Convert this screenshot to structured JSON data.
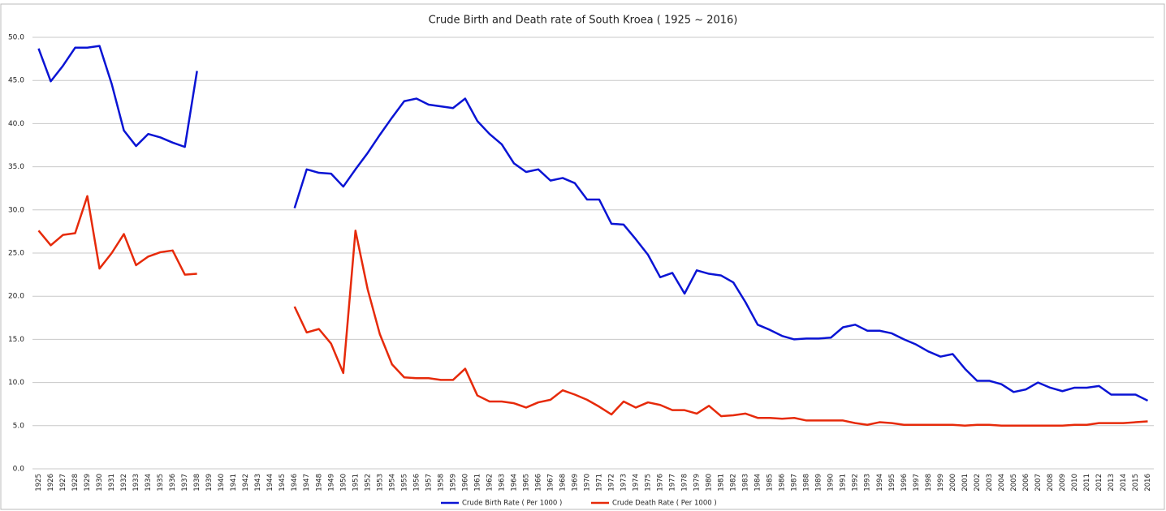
{
  "chart_data": {
    "type": "line",
    "title": "Crude Birth and Death rate of South Kroea ( 1925 ~ 2016)",
    "categories": [
      "1925",
      "1926",
      "1927",
      "1928",
      "1929",
      "1930",
      "1931",
      "1932",
      "1933",
      "1934",
      "1935",
      "1936",
      "1937",
      "1938",
      "1939",
      "1940",
      "1941",
      "1942",
      "1943",
      "1944",
      "1945",
      "1946",
      "1947",
      "1948",
      "1949",
      "1950",
      "1951",
      "1952",
      "1953",
      "1954",
      "1955",
      "1956",
      "1957",
      "1958",
      "1959",
      "1960",
      "1961",
      "1962",
      "1963",
      "1964",
      "1965",
      "1966",
      "1967",
      "1968",
      "1969",
      "1970",
      "1971",
      "1972",
      "1973",
      "1974",
      "1975",
      "1976",
      "1977",
      "1978",
      "1979",
      "1980",
      "1981",
      "1982",
      "1983",
      "1984",
      "1985",
      "1986",
      "1987",
      "1988",
      "1989",
      "1990",
      "1991",
      "1992",
      "1993",
      "1994",
      "1995",
      "1996",
      "1997",
      "1998",
      "1999",
      "2000",
      "2001",
      "2002",
      "2003",
      "2004",
      "2005",
      "2006",
      "2007",
      "2008",
      "2009",
      "2010",
      "2011",
      "2012",
      "2013",
      "2014",
      "2015",
      "2016"
    ],
    "series": [
      {
        "name": "Crude Birth Rate ( Per 1000 )",
        "color": "#0a14d4",
        "values": [
          48.7,
          44.9,
          46.7,
          48.8,
          48.8,
          49.0,
          44.6,
          39.2,
          37.4,
          38.8,
          38.4,
          37.8,
          37.3,
          46.1,
          null,
          null,
          null,
          null,
          null,
          null,
          null,
          30.2,
          34.7,
          34.3,
          34.2,
          32.7,
          34.7,
          36.6,
          38.7,
          40.7,
          42.6,
          42.9,
          42.2,
          42.0,
          41.8,
          42.9,
          40.3,
          38.8,
          37.6,
          35.4,
          34.4,
          34.7,
          33.4,
          33.7,
          33.1,
          31.2,
          31.2,
          28.4,
          28.3,
          26.6,
          24.8,
          22.2,
          22.7,
          20.3,
          23.0,
          22.6,
          22.4,
          21.6,
          19.3,
          16.7,
          16.1,
          15.4,
          15.0,
          15.1,
          15.1,
          15.2,
          16.4,
          16.7,
          16.0,
          16.0,
          15.7,
          15.0,
          14.4,
          13.6,
          13.0,
          13.3,
          11.6,
          10.2,
          10.2,
          9.8,
          8.9,
          9.2,
          10.0,
          9.4,
          9.0,
          9.4,
          9.4,
          9.6,
          8.6,
          8.6,
          8.6,
          7.9
        ]
      },
      {
        "name": "Crude Death Rate ( Per 1000 )",
        "color": "#e62a0a",
        "values": [
          27.6,
          25.9,
          27.1,
          27.3,
          31.6,
          23.2,
          25.0,
          27.2,
          23.6,
          24.6,
          25.1,
          25.3,
          22.5,
          22.6,
          null,
          null,
          null,
          null,
          null,
          null,
          null,
          18.8,
          15.8,
          16.2,
          14.5,
          11.1,
          27.6,
          20.8,
          15.6,
          12.1,
          10.6,
          10.5,
          10.5,
          10.3,
          10.3,
          11.6,
          8.5,
          7.8,
          7.8,
          7.6,
          7.1,
          7.7,
          8.0,
          9.1,
          8.6,
          8.0,
          7.2,
          6.3,
          7.8,
          7.1,
          7.7,
          7.4,
          6.8,
          6.8,
          6.4,
          7.3,
          6.1,
          6.2,
          6.4,
          5.9,
          5.9,
          5.8,
          5.9,
          5.6,
          5.6,
          5.6,
          5.6,
          5.3,
          5.1,
          5.4,
          5.3,
          5.1,
          5.1,
          5.1,
          5.1,
          5.1,
          5.0,
          5.1,
          5.1,
          5.0,
          5.0,
          5.0,
          5.0,
          5.0,
          5.0,
          5.1,
          5.1,
          5.3,
          5.3,
          5.3,
          5.4,
          5.5
        ]
      }
    ],
    "ylim": [
      0,
      50
    ],
    "yticks": [
      {
        "value": 0,
        "label": "0.0"
      },
      {
        "value": 5,
        "label": "5.0"
      },
      {
        "value": 10,
        "label": "10.0"
      },
      {
        "value": 15,
        "label": "15.0"
      },
      {
        "value": 20,
        "label": "20.0"
      },
      {
        "value": 25,
        "label": "25.0"
      },
      {
        "value": 30,
        "label": "30.0"
      },
      {
        "value": 35,
        "label": "35.0"
      },
      {
        "value": 40,
        "label": "40.0"
      },
      {
        "value": 45,
        "label": "45.0"
      },
      {
        "value": 50,
        "label": "50.0"
      }
    ],
    "grid": true,
    "legend": "bottom"
  }
}
